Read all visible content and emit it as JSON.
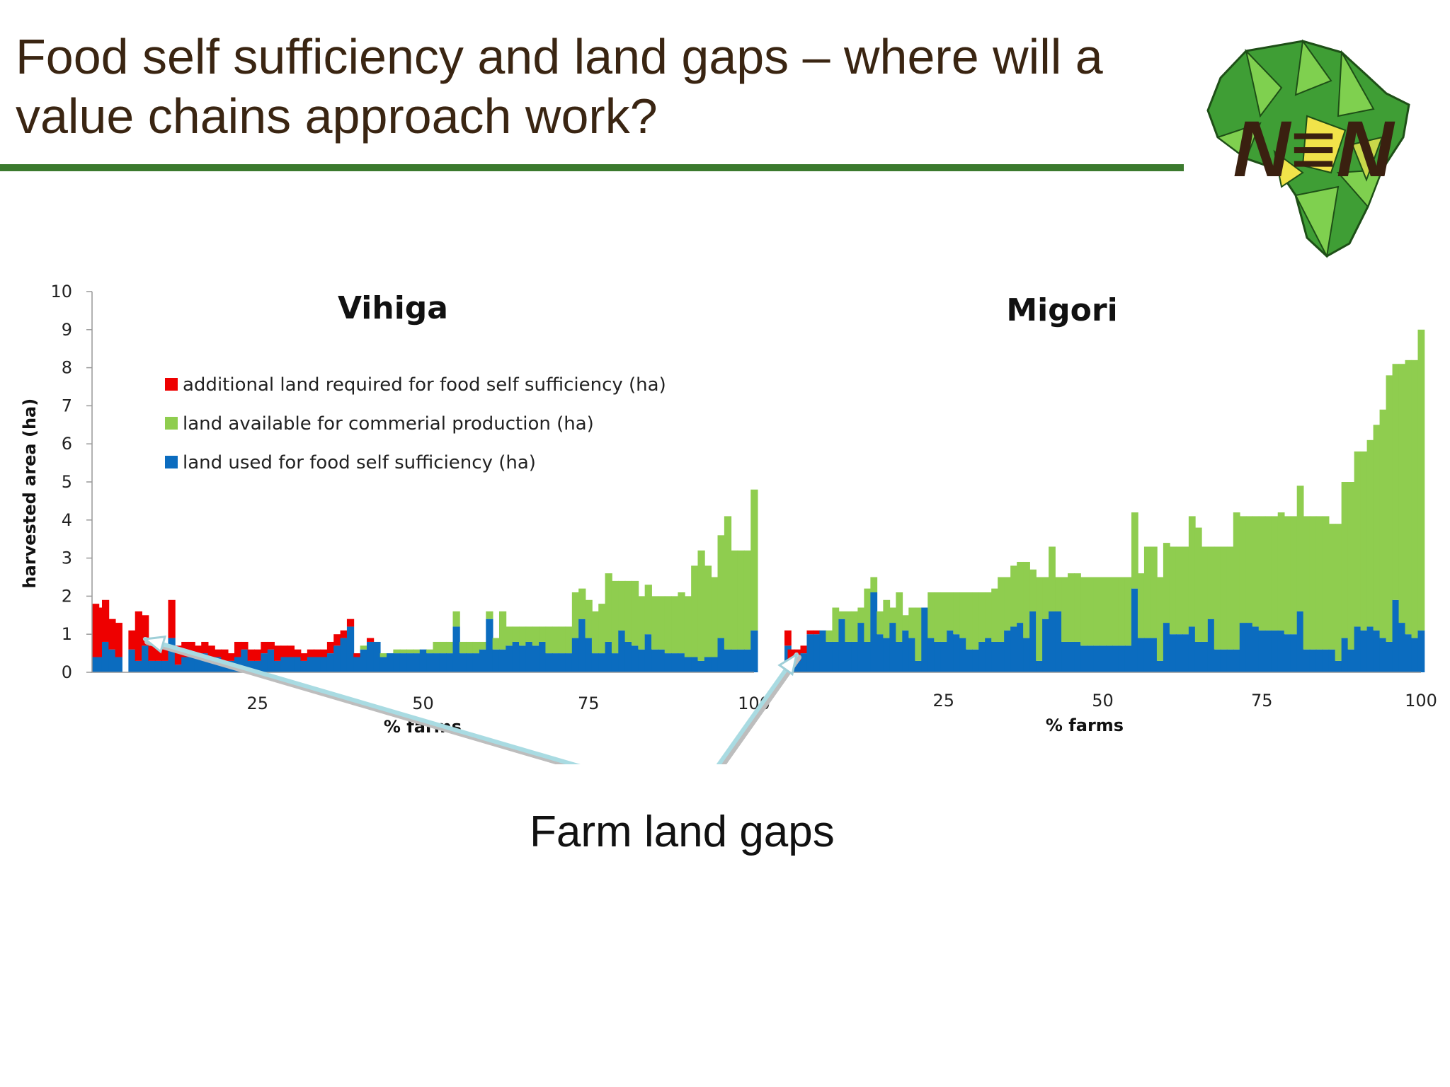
{
  "slide": {
    "title_line1": "Food self sufficiency and land gaps – where will a",
    "title_line2": "value chains approach work?",
    "caption": "Farm land gaps",
    "logo_text": "N≡N",
    "accent_color": "#3b7a2e",
    "title_color": "#3a2512"
  },
  "chart_data": [
    {
      "type": "bar",
      "stacked": true,
      "title": "Vihiga",
      "xlabel": "% farms",
      "ylabel": "harvested area (ha)",
      "xlim": [
        0,
        100
      ],
      "ylim": [
        0,
        10
      ],
      "xticks": [
        25,
        50,
        75,
        100
      ],
      "yticks": [
        0,
        1,
        2,
        3,
        4,
        5,
        6,
        7,
        8,
        9,
        10
      ],
      "legend_position": "top-left",
      "series": [
        {
          "name": "additional land required for food self sufficiency (ha)",
          "color": "#ee0000"
        },
        {
          "name": "land available for commerial production (ha)",
          "color": "#8fcd4f"
        },
        {
          "name": "land used for food self sufficiency (ha)",
          "color": "#0b6cbf"
        }
      ],
      "x": [
        0,
        1,
        2,
        3,
        4,
        6,
        7,
        8,
        9,
        10,
        11,
        12,
        13,
        14,
        15,
        16,
        17,
        18,
        19,
        20,
        21,
        22,
        23,
        24,
        25,
        26,
        27,
        28,
        29,
        30,
        31,
        32,
        33,
        34,
        35,
        36,
        37,
        38,
        39,
        40,
        41,
        42,
        43,
        44,
        45,
        46,
        47,
        48,
        49,
        50,
        51,
        52,
        53,
        54,
        55,
        56,
        57,
        58,
        59,
        60,
        61,
        62,
        63,
        64,
        65,
        66,
        67,
        68,
        69,
        70,
        71,
        72,
        73,
        74,
        75,
        76,
        77,
        78,
        79,
        80,
        81,
        82,
        83,
        84,
        85,
        86,
        87,
        88,
        89,
        90,
        91,
        92,
        93,
        94,
        95,
        96,
        97,
        98,
        99,
        100
      ],
      "used": [
        0.4,
        0.4,
        0.8,
        0.6,
        0.4,
        0.6,
        0.3,
        0.7,
        0.3,
        0.3,
        0.3,
        0.9,
        0.2,
        0.4,
        0.4,
        0.4,
        0.5,
        0.4,
        0.4,
        0.3,
        0.3,
        0.4,
        0.6,
        0.3,
        0.3,
        0.5,
        0.6,
        0.3,
        0.4,
        0.4,
        0.4,
        0.3,
        0.4,
        0.4,
        0.4,
        0.5,
        0.7,
        0.9,
        1.2,
        0.4,
        0.6,
        0.8,
        0.8,
        0.4,
        0.5,
        0.5,
        0.5,
        0.5,
        0.5,
        0.6,
        0.5,
        0.5,
        0.5,
        0.5,
        1.2,
        0.5,
        0.5,
        0.5,
        0.6,
        1.4,
        0.6,
        0.6,
        0.7,
        0.8,
        0.7,
        0.8,
        0.7,
        0.8,
        0.5,
        0.5,
        0.5,
        0.5,
        0.9,
        1.4,
        0.9,
        0.5,
        0.5,
        0.8,
        0.5,
        1.1,
        0.8,
        0.7,
        0.6,
        1.0,
        0.6,
        0.6,
        0.5,
        0.5,
        0.5,
        0.4,
        0.4,
        0.3,
        0.4,
        0.4,
        0.9,
        0.6,
        0.6,
        0.6,
        0.6,
        1.1
      ],
      "additional": [
        1.4,
        1.3,
        1.1,
        0.8,
        0.9,
        0.5,
        1.3,
        0.8,
        0.4,
        0.6,
        0.4,
        1.0,
        0.5,
        0.4,
        0.4,
        0.3,
        0.3,
        0.3,
        0.2,
        0.3,
        0.2,
        0.4,
        0.2,
        0.3,
        0.3,
        0.3,
        0.2,
        0.4,
        0.3,
        0.3,
        0.2,
        0.2,
        0.2,
        0.2,
        0.2,
        0.3,
        0.3,
        0.2,
        0.2,
        0.1,
        0.0,
        0.1,
        0.0,
        0.0,
        0.0,
        0.0,
        0.0,
        0.0,
        0.0,
        0.0,
        0.0,
        0.0,
        0.0,
        0.0,
        0.0,
        0.0,
        0.0,
        0.0,
        0.0,
        0.0,
        0.0,
        0.0,
        0.0,
        0.0,
        0.0,
        0.0,
        0.0,
        0.0,
        0.0,
        0.0,
        0.0,
        0.0,
        0.0,
        0.0,
        0.0,
        0.0,
        0.0,
        0.0,
        0.0,
        0.0,
        0.0,
        0.0,
        0.0,
        0.0,
        0.0,
        0.0,
        0.0,
        0.0,
        0.0,
        0.0,
        0.0,
        0.0,
        0.0,
        0.0,
        0.0,
        0.0,
        0.0,
        0.0,
        0.0,
        0.0
      ],
      "available": [
        0.0,
        0.0,
        0.0,
        0.0,
        0.0,
        0.0,
        0.0,
        0.0,
        0.0,
        0.0,
        0.0,
        0.0,
        0.0,
        0.0,
        0.0,
        0.0,
        0.0,
        0.0,
        0.0,
        0.0,
        0.0,
        0.0,
        0.0,
        0.0,
        0.0,
        0.0,
        0.0,
        0.0,
        0.0,
        0.0,
        0.0,
        0.0,
        0.0,
        0.0,
        0.0,
        0.0,
        0.0,
        0.0,
        0.0,
        0.0,
        0.1,
        0.0,
        0.0,
        0.1,
        0.0,
        0.1,
        0.1,
        0.1,
        0.1,
        0.0,
        0.1,
        0.3,
        0.3,
        0.3,
        0.4,
        0.3,
        0.3,
        0.3,
        0.2,
        0.2,
        0.3,
        1.0,
        0.5,
        0.4,
        0.5,
        0.4,
        0.5,
        0.4,
        0.7,
        0.7,
        0.7,
        0.7,
        1.2,
        0.8,
        1.0,
        1.1,
        1.3,
        1.8,
        1.9,
        1.3,
        1.6,
        1.7,
        1.4,
        1.3,
        1.4,
        1.4,
        1.5,
        1.5,
        1.6,
        1.6,
        2.4,
        2.9,
        2.4,
        2.1,
        2.7,
        3.5,
        2.6,
        2.6,
        2.6,
        3.7
      ]
    },
    {
      "type": "bar",
      "stacked": true,
      "title": "Migori",
      "xlabel": "% farms",
      "ylabel": "",
      "xlim": [
        0,
        100
      ],
      "ylim": [
        0,
        10
      ],
      "xticks": [
        25,
        50,
        75,
        100
      ],
      "yticks": [],
      "series": [
        {
          "name": "additional land required for food self sufficiency (ha)",
          "color": "#ee0000"
        },
        {
          "name": "land available for commerial production (ha)",
          "color": "#8fcd4f"
        },
        {
          "name": "land used for food self sufficiency (ha)",
          "color": "#0b6cbf"
        }
      ],
      "x": [
        0,
        1,
        2,
        3,
        4,
        5,
        6,
        7,
        8,
        9,
        10,
        11,
        12,
        13,
        14,
        15,
        16,
        17,
        18,
        19,
        20,
        21,
        22,
        23,
        24,
        25,
        26,
        27,
        28,
        29,
        30,
        31,
        32,
        33,
        34,
        35,
        36,
        37,
        38,
        39,
        40,
        41,
        42,
        43,
        44,
        45,
        46,
        47,
        48,
        49,
        50,
        51,
        52,
        53,
        54,
        55,
        56,
        57,
        58,
        59,
        60,
        61,
        62,
        63,
        64,
        65,
        66,
        67,
        68,
        69,
        70,
        71,
        72,
        73,
        74,
        75,
        76,
        77,
        78,
        79,
        80,
        81,
        82,
        83,
        84,
        85,
        86,
        87,
        88,
        89,
        90,
        91,
        92,
        93,
        94,
        95,
        96,
        97,
        98,
        99,
        100
      ],
      "used": [
        0.7,
        0.3,
        0.3,
        0.5,
        1.0,
        1.0,
        1.1,
        0.8,
        0.8,
        1.4,
        0.8,
        0.8,
        1.3,
        0.8,
        2.1,
        1.0,
        0.9,
        1.3,
        0.8,
        1.1,
        0.9,
        0.3,
        1.7,
        0.9,
        0.8,
        0.8,
        1.1,
        1.0,
        0.9,
        0.6,
        0.6,
        0.8,
        0.9,
        0.8,
        0.8,
        1.1,
        1.2,
        1.3,
        0.9,
        1.6,
        0.3,
        1.4,
        1.6,
        1.6,
        0.8,
        0.8,
        0.8,
        0.7,
        0.7,
        0.7,
        0.7,
        0.7,
        0.7,
        0.7,
        0.7,
        2.2,
        0.9,
        0.9,
        0.9,
        0.3,
        1.3,
        1.0,
        1.0,
        1.0,
        1.2,
        0.8,
        0.8,
        1.4,
        0.6,
        0.6,
        0.6,
        0.6,
        1.3,
        1.3,
        1.2,
        1.1,
        1.1,
        1.1,
        1.1,
        1.0,
        1.0,
        1.6,
        0.6,
        0.6,
        0.6,
        0.6,
        0.6,
        0.3,
        0.9,
        0.6,
        1.2,
        1.1,
        1.2,
        1.1,
        0.9,
        0.8,
        1.9,
        1.3,
        1.0,
        0.9,
        1.1
      ],
      "additional": [
        0.4,
        0.3,
        0.3,
        0.2,
        0.1,
        0.1,
        0.0,
        0.0,
        0.0,
        0.0,
        0.0,
        0.0,
        0.0,
        0.0,
        0.0,
        0.0,
        0.0,
        0.0,
        0.0,
        0.0,
        0.0,
        0.0,
        0.0,
        0.0,
        0.0,
        0.0,
        0.0,
        0.0,
        0.0,
        0.0,
        0.0,
        0.0,
        0.0,
        0.0,
        0.0,
        0.0,
        0.0,
        0.0,
        0.0,
        0.0,
        0.0,
        0.0,
        0.0,
        0.0,
        0.0,
        0.0,
        0.0,
        0.0,
        0.0,
        0.0,
        0.0,
        0.0,
        0.0,
        0.0,
        0.0,
        0.0,
        0.0,
        0.0,
        0.0,
        0.0,
        0.0,
        0.0,
        0.0,
        0.0,
        0.0,
        0.0,
        0.0,
        0.0,
        0.0,
        0.0,
        0.0,
        0.0,
        0.0,
        0.0,
        0.0,
        0.0,
        0.0,
        0.0,
        0.0,
        0.0,
        0.0,
        0.0,
        0.0,
        0.0,
        0.0,
        0.0,
        0.0,
        0.0,
        0.0,
        0.0,
        0.0,
        0.0,
        0.0,
        0.0,
        0.0,
        0.0,
        0.0,
        0.0,
        0.0,
        0.0,
        0.0
      ],
      "available": [
        0.0,
        0.0,
        0.0,
        0.0,
        0.0,
        0.0,
        0.0,
        0.3,
        0.9,
        0.2,
        0.8,
        0.8,
        0.4,
        1.4,
        0.4,
        0.6,
        1.0,
        0.4,
        1.3,
        0.4,
        0.8,
        1.4,
        0.0,
        1.2,
        1.3,
        1.3,
        1.0,
        1.1,
        1.2,
        1.5,
        1.5,
        1.3,
        1.2,
        1.4,
        1.7,
        1.4,
        1.6,
        1.6,
        2.0,
        1.1,
        2.2,
        1.1,
        1.7,
        0.9,
        1.7,
        1.8,
        1.8,
        1.8,
        1.8,
        1.8,
        1.8,
        1.8,
        1.8,
        1.8,
        1.8,
        2.0,
        1.7,
        2.4,
        2.4,
        2.2,
        2.1,
        2.3,
        2.3,
        2.3,
        2.9,
        3.0,
        2.5,
        1.9,
        2.7,
        2.7,
        2.7,
        3.6,
        2.8,
        2.8,
        2.9,
        3.0,
        3.0,
        3.0,
        3.1,
        3.1,
        3.1,
        3.3,
        3.5,
        3.5,
        3.5,
        3.5,
        3.3,
        3.6,
        4.1,
        4.4,
        4.6,
        4.7,
        4.9,
        5.4,
        6.0,
        7.0,
        6.2,
        6.8,
        7.2,
        7.3,
        7.9
      ]
    }
  ]
}
